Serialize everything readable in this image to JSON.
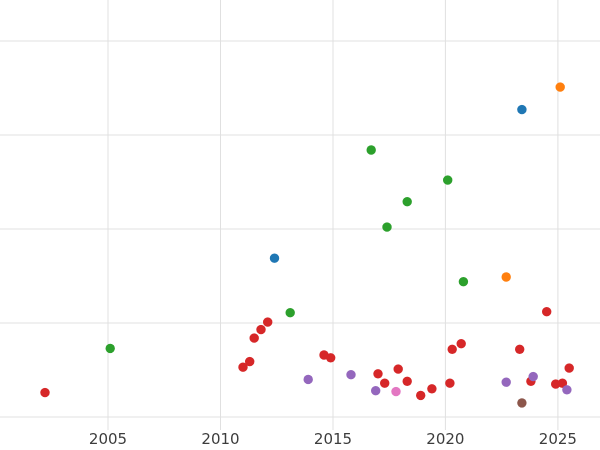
{
  "chart": {
    "background": "#ffffff",
    "grid_color": "#e0e0e0",
    "tick_label_color": "#3c3c3c",
    "tick_font_size": 15,
    "marker_radius": 4.7,
    "x_axis": {
      "min": 2000.2,
      "max": 2026.87,
      "ticks": [
        2005,
        2010,
        2015,
        2020,
        2025
      ],
      "tick_labels": [
        "2005",
        "2010",
        "2015",
        "2020",
        "2025"
      ]
    },
    "y_axis": {
      "min": -0.138,
      "max": 4.436,
      "gridlines": [
        0,
        1,
        2,
        3,
        4
      ],
      "tick_labels": [],
      "note": "no y tick labels visible; values estimated in gridline units"
    }
  },
  "chart_data": {
    "type": "scatter",
    "title": "",
    "xlabel": "",
    "ylabel": "",
    "legend": "none",
    "grid": true,
    "x_range": [
      2000.2,
      2026.87
    ],
    "y_range": [
      -0.138,
      4.436
    ],
    "series": [
      {
        "name": "red",
        "color": "#d62728",
        "points": [
          [
            2002.2,
            0.26
          ],
          [
            2011.0,
            0.53
          ],
          [
            2011.3,
            0.59
          ],
          [
            2011.5,
            0.84
          ],
          [
            2011.8,
            0.93
          ],
          [
            2012.1,
            1.01
          ],
          [
            2014.6,
            0.66
          ],
          [
            2014.9,
            0.63
          ],
          [
            2017.0,
            0.46
          ],
          [
            2017.3,
            0.36
          ],
          [
            2017.9,
            0.51
          ],
          [
            2018.3,
            0.38
          ],
          [
            2018.9,
            0.23
          ],
          [
            2019.4,
            0.3
          ],
          [
            2020.2,
            0.36
          ],
          [
            2020.3,
            0.72
          ],
          [
            2020.7,
            0.78
          ],
          [
            2023.3,
            0.72
          ],
          [
            2023.8,
            0.38
          ],
          [
            2024.5,
            1.12
          ],
          [
            2024.9,
            0.35
          ],
          [
            2025.2,
            0.36
          ],
          [
            2025.5,
            0.52
          ]
        ]
      },
      {
        "name": "green",
        "color": "#2ca02c",
        "points": [
          [
            2005.1,
            0.73
          ],
          [
            2013.1,
            1.11
          ],
          [
            2016.7,
            2.84
          ],
          [
            2017.4,
            2.02
          ],
          [
            2018.3,
            2.29
          ],
          [
            2020.1,
            2.52
          ],
          [
            2020.8,
            1.44
          ]
        ]
      },
      {
        "name": "blue",
        "color": "#1f77b4",
        "points": [
          [
            2012.4,
            1.69
          ],
          [
            2023.4,
            3.27
          ]
        ]
      },
      {
        "name": "orange",
        "color": "#ff7f0e",
        "points": [
          [
            2022.7,
            1.49
          ],
          [
            2025.1,
            3.51
          ]
        ]
      },
      {
        "name": "purple",
        "color": "#9467bd",
        "points": [
          [
            2013.9,
            0.4
          ],
          [
            2015.8,
            0.45
          ],
          [
            2016.9,
            0.28
          ],
          [
            2022.7,
            0.37
          ],
          [
            2023.9,
            0.43
          ],
          [
            2025.4,
            0.29
          ]
        ]
      },
      {
        "name": "pink",
        "color": "#e377c2",
        "points": [
          [
            2017.8,
            0.27
          ]
        ]
      },
      {
        "name": "brown",
        "color": "#8c564b",
        "points": [
          [
            2023.4,
            0.15
          ]
        ]
      }
    ]
  }
}
